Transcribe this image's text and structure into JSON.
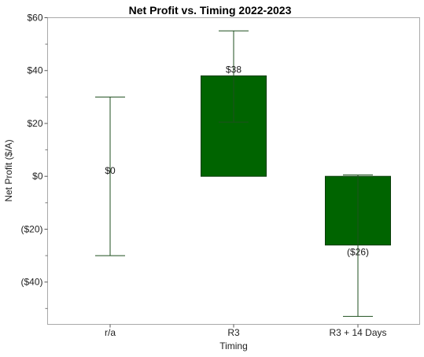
{
  "chart_data": {
    "type": "bar",
    "title": "Net Profit vs. Timing 2022-2023",
    "xlabel": "Timing",
    "ylabel": "Net Profit ($/A)",
    "categories": [
      "r/a",
      "R3",
      "R3 + 14 Days"
    ],
    "values": [
      0,
      38,
      -26
    ],
    "value_labels": [
      "$0",
      "$38",
      "($26)"
    ],
    "error_low": [
      -30,
      20.5,
      -53
    ],
    "error_high": [
      30,
      55,
      0.5
    ],
    "ylim": [
      -56,
      60
    ],
    "yticks": [
      60,
      40,
      20,
      0,
      -20,
      -40
    ],
    "ytick_labels": [
      "$60",
      "$40",
      "$20",
      "$0",
      "($20)",
      "($40)"
    ],
    "grid": false,
    "legend": "none",
    "colors": {
      "bar": "#006400",
      "bar_stroke": "#0b3d0b",
      "whisker": "#1f4f1f",
      "frame": "#a9a9a9"
    }
  }
}
